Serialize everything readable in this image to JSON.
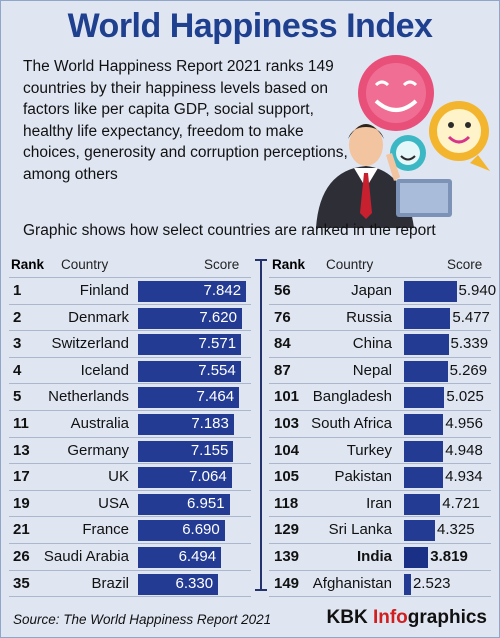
{
  "header": {
    "title": "World Happiness Index"
  },
  "intro": "The World Happiness Report 2021 ranks 149 countries by their happiness levels based on factors like per capita GDP, social support, healthy life expectancy, freedom to make choices, generosity and corruption perceptions, among others",
  "subtitle": "Graphic shows how select countries are ranked in the report",
  "columns": {
    "rank": "Rank",
    "country": "Country",
    "score": "Score"
  },
  "footer": {
    "source": "Source: The World Happiness Report 2021",
    "brand_kbk": "KBK ",
    "brand_info": "Info",
    "brand_graphics": "graphics"
  },
  "colors": {
    "bar": "#233b93",
    "title": "#1f3f8f",
    "background": "#dfe6f2",
    "brand_accent": "#d11f1f"
  },
  "icons": [
    "smiley-face-icon",
    "businessman-illustration",
    "speech-bubble-icon"
  ],
  "chart_data": {
    "type": "bar",
    "orientation": "horizontal",
    "title": "",
    "xlim": [
      2.0,
      8.0
    ],
    "categories": [
      "Finland",
      "Denmark",
      "Switzerland",
      "Iceland",
      "Netherlands",
      "Australia",
      "Germany",
      "UK",
      "USA",
      "France",
      "Saudi Arabia",
      "Brazil",
      "Japan",
      "Russia",
      "China",
      "Nepal",
      "Bangladesh",
      "South Africa",
      "Turkey",
      "Pakistan",
      "Iran",
      "Sri Lanka",
      "India",
      "Afghanistan"
    ],
    "ranks": [
      "1",
      "2",
      "3",
      "4",
      "5",
      "11",
      "13",
      "17",
      "19",
      "21",
      "26",
      "35",
      "56",
      "76",
      "84",
      "87",
      "101",
      "103",
      "104",
      "105",
      "118",
      "129",
      "139",
      "149"
    ],
    "values": [
      7.842,
      7.62,
      7.571,
      7.554,
      7.464,
      7.183,
      7.155,
      7.064,
      6.951,
      6.69,
      6.494,
      6.33,
      5.94,
      5.477,
      5.339,
      5.269,
      5.025,
      4.956,
      4.948,
      4.934,
      4.721,
      4.325,
      3.819,
      2.523
    ],
    "labels": [
      "7.842",
      "7.620",
      "7.571",
      "7.554",
      "7.464",
      "7.183",
      "7.155",
      "7.064",
      "6.951",
      "6.690",
      "6.494",
      "6.330",
      "5.940",
      "5.477",
      "5.339",
      "5.269",
      "5.025",
      "4.956",
      "4.948",
      "4.934",
      "4.721",
      "4.325",
      "3.819",
      "2.523"
    ],
    "highlight": "India"
  }
}
